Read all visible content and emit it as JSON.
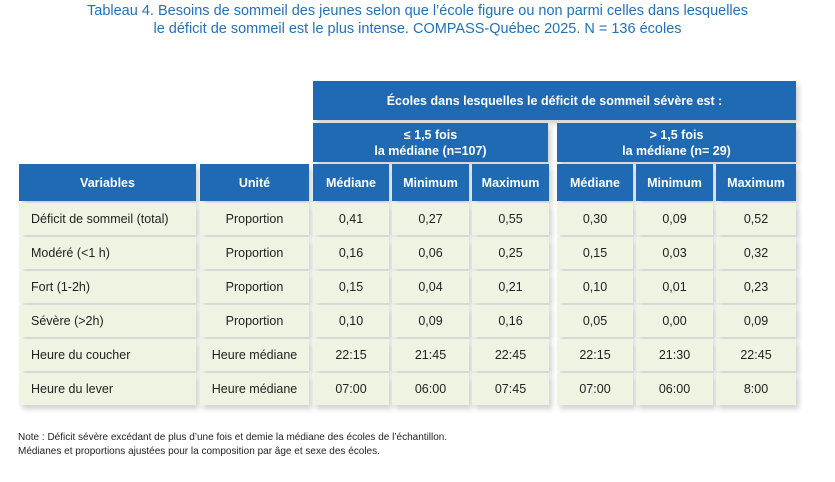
{
  "title": {
    "line1": "Tableau 4. Besoins de sommeil des jeunes selon que l’école figure ou non  parmi celles dans lesquelles",
    "line2": "le déficit de sommeil est le plus intense. COMPASS-Québec 2025. N = 136 écoles"
  },
  "table": {
    "group_header": "Écoles dans lesquelles le déficit de sommeil sévère est :",
    "group1_line1": "≤ 1,5 fois",
    "group1_line2": "la médiane (n=107)",
    "group2_line1": "> 1,5 fois",
    "group2_line2": "la médiane (n= 29)",
    "col_variables": "Variables",
    "col_unite": "Unité",
    "stat_cols": [
      "Médiane",
      "Minimum",
      "Maximum",
      "Médiane",
      "Minimum",
      "Maximum"
    ],
    "rows": [
      {
        "variable": "Déficit de sommeil (total)",
        "unite": "Proportion",
        "values": [
          "0,41",
          "0,27",
          "0,55",
          "0,30",
          "0,09",
          "0,52"
        ]
      },
      {
        "variable": "Modéré (<1 h)",
        "unite": "Proportion",
        "values": [
          "0,16",
          "0,06",
          "0,25",
          "0,15",
          "0,03",
          "0,32"
        ]
      },
      {
        "variable": "Fort (1-2h)",
        "unite": "Proportion",
        "values": [
          "0,15",
          "0,04",
          "0,21",
          "0,10",
          "0,01",
          "0,23"
        ]
      },
      {
        "variable": "Sévère (>2h)",
        "unite": "Proportion",
        "values": [
          "0,10",
          "0,09",
          "0,16",
          "0,05",
          "0,00",
          "0,09"
        ]
      },
      {
        "variable": "Heure du coucher",
        "unite": "Heure médiane",
        "values": [
          "22:15",
          "21:45",
          "22:45",
          "22:15",
          "21:30",
          "22:45"
        ]
      },
      {
        "variable": "Heure du lever",
        "unite": "Heure médiane",
        "values": [
          "07:00",
          "06:00",
          "07:45",
          "07:00",
          "06:00",
          "8:00"
        ]
      }
    ]
  },
  "notes": {
    "line1": "Note : Déficit sévère excédant de plus d’une fois et demie la médiane des écoles de l’échantillon.",
    "line2": "Médianes et proportions ajustées pour la composition par âge et sexe des écoles."
  }
}
